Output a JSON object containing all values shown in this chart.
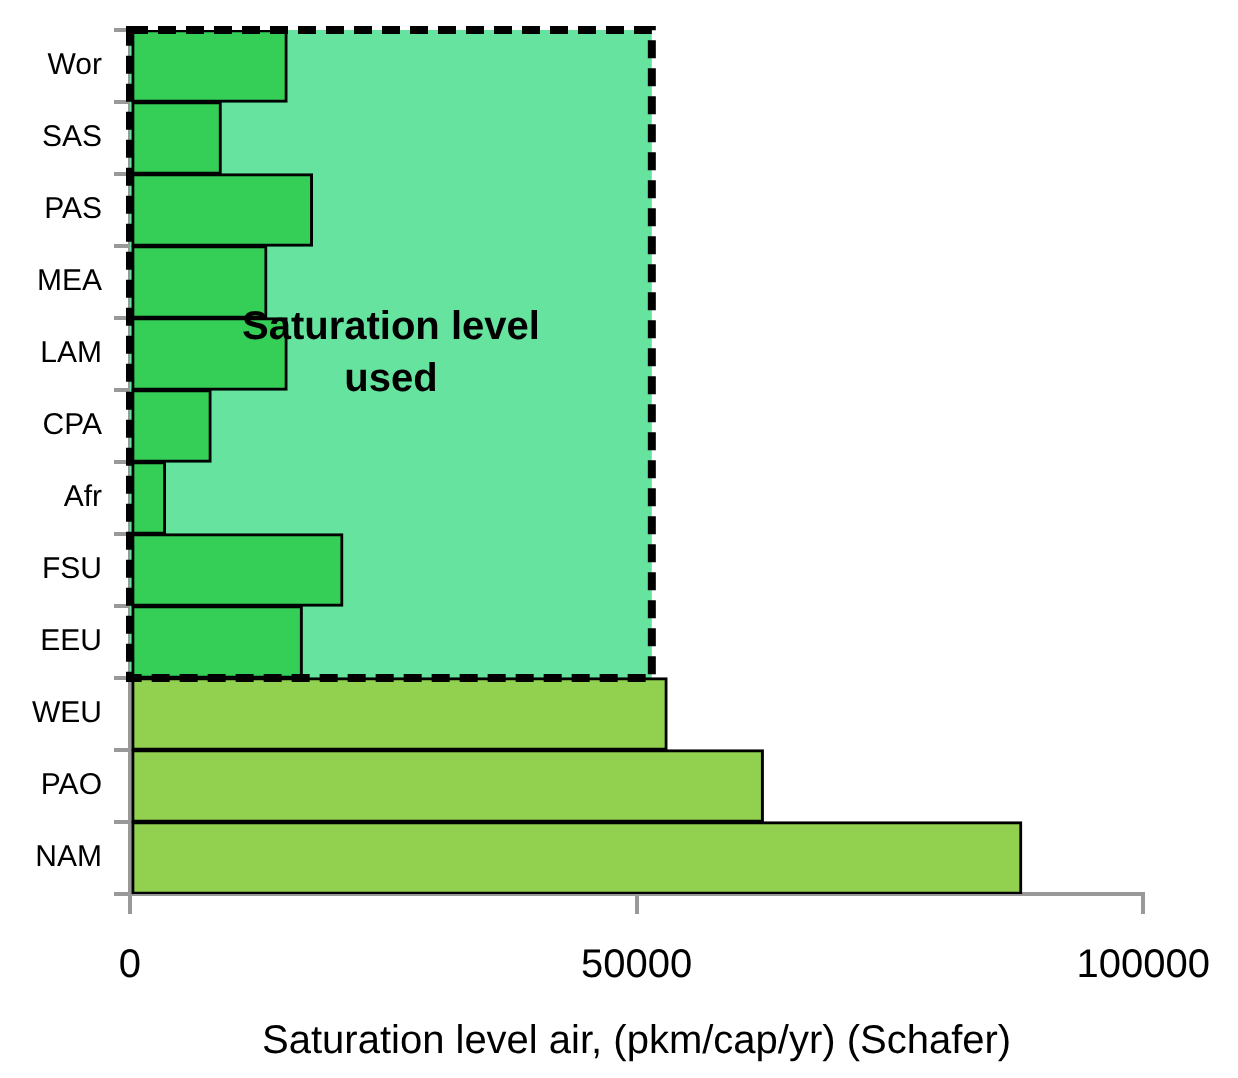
{
  "chart_data": {
    "type": "bar",
    "orientation": "horizontal",
    "xlabel": "Saturation level air, (pkm/cap/yr) (Schafer)",
    "categories": [
      "Wor",
      "SAS",
      "PAS",
      "MEA",
      "LAM",
      "CPA",
      "Afr",
      "FSU",
      "EEU",
      "WEU",
      "PAO",
      "NAM"
    ],
    "values": [
      15500,
      9000,
      18000,
      13500,
      15500,
      8000,
      3500,
      21000,
      17000,
      53000,
      62500,
      88000
    ],
    "colors": [
      "#35cf58",
      "#35cf58",
      "#35cf58",
      "#35cf58",
      "#35cf58",
      "#35cf58",
      "#35cf58",
      "#35cf58",
      "#35cf58",
      "#92d050",
      "#92d050",
      "#92d050"
    ],
    "xlim": [
      0,
      100000
    ],
    "xticks": [
      0,
      50000,
      100000
    ],
    "grid": false,
    "legend": false,
    "bands": [
      {
        "axis": "x",
        "from": 0,
        "to": 51500,
        "label": "Saturation level used",
        "color": "#66e39e"
      }
    ]
  }
}
